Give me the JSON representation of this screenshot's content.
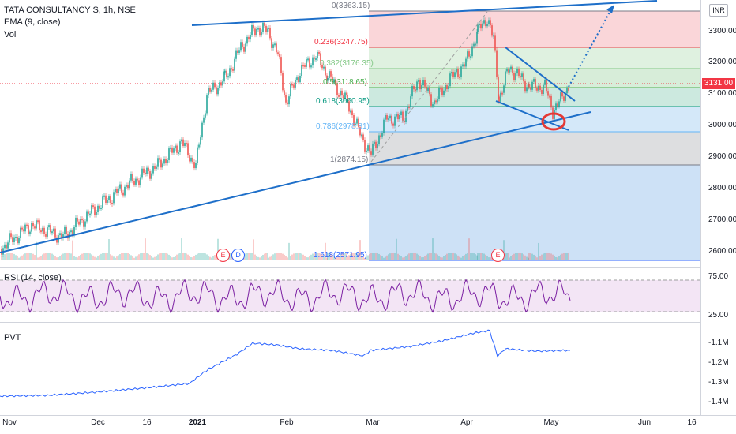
{
  "legend": {
    "symbol": "TATA CONSULTANCY S, 1h, NSE",
    "ema": "EMA (9, close)",
    "vol": "Vol",
    "rsi": "RSI (14, close)",
    "pvt": "PVT"
  },
  "currency_button": "INR",
  "last_price": "3131.00",
  "price_axis": [
    "3300.00",
    "3200.00",
    "3100.00",
    "3000.00",
    "2900.00",
    "2800.00",
    "2700.00",
    "2600.00"
  ],
  "rsi_axis": [
    "75.00",
    "25.00"
  ],
  "pvt_axis": [
    "-1.1M",
    "-1.2M",
    "-1.3M",
    "-1.4M"
  ],
  "time_axis": [
    {
      "label": "Nov",
      "bold": false
    },
    {
      "label": "Dec",
      "bold": false
    },
    {
      "label": "16",
      "bold": false
    },
    {
      "label": "2021",
      "bold": true
    },
    {
      "label": "Feb",
      "bold": false
    },
    {
      "label": "Mar",
      "bold": false
    },
    {
      "label": "Apr",
      "bold": false
    },
    {
      "label": "May",
      "bold": false
    },
    {
      "label": "Jun",
      "bold": false
    },
    {
      "label": "16",
      "bold": false
    }
  ],
  "fib_levels": [
    {
      "label": "0(3363.15)",
      "color": "#787b86"
    },
    {
      "label": "0.236(3247.75)",
      "color": "#f23645"
    },
    {
      "label": "0.382(3176.35)",
      "color": "#81c784"
    },
    {
      "label": "0.5(3118.65)",
      "color": "#4caf50"
    },
    {
      "label": "0.618(3060.95)",
      "color": "#089981"
    },
    {
      "label": "0.786(2978.81)",
      "color": "#64b5f6"
    },
    {
      "label": "1(2874.15)",
      "color": "#787b86"
    },
    {
      "label": "1.618(2571.95)",
      "color": "#2962ff"
    }
  ],
  "events": [
    {
      "label": "E",
      "color": "#f23645"
    },
    {
      "label": "D",
      "color": "#2962ff"
    },
    {
      "label": "E",
      "color": "#f23645"
    }
  ],
  "colors": {
    "up_candle": "#26a69a",
    "down_candle": "#ef5350",
    "trendline": "#1e6fc9",
    "rsi_line": "#7b1fa2",
    "pvt_line": "#2962ff",
    "rsi_band": "#f3e5f5",
    "highlight_circle": "#e53935"
  }
}
